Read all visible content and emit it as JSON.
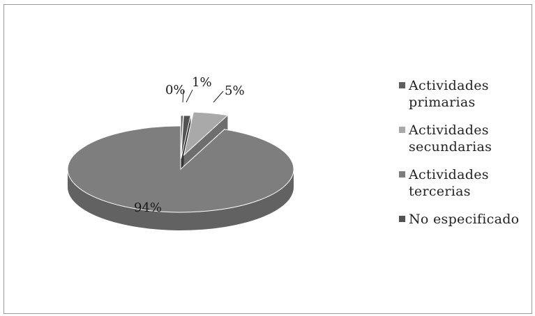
{
  "chart_data": {
    "type": "pie",
    "title": "",
    "slices": [
      {
        "label": "Actividades primarias",
        "value": 0,
        "display": "0%",
        "color": "#5e5e5e"
      },
      {
        "label": "Actividades secundarias",
        "value": 5,
        "display": "5%",
        "color": "#a9a9a9"
      },
      {
        "label": "Actividades tercerias",
        "value": 94,
        "display": "94%",
        "color": "#7e7e7e"
      },
      {
        "label": "No especificado",
        "value": 1,
        "display": "1%",
        "color": "#525252"
      }
    ],
    "legend_position": "right",
    "style": "3d-exploded"
  },
  "legend": {
    "items": [
      {
        "label": "Actividades primarias",
        "line1": "Actividades",
        "line2": "primarias",
        "color": "#5e5e5e"
      },
      {
        "label": "Actividades secundarias",
        "line1": "Actividades",
        "line2": "secundarias",
        "color": "#a9a9a9"
      },
      {
        "label": "Actividades tercerias",
        "line1": "Actividades",
        "line2": "tercerias",
        "color": "#7e7e7e"
      },
      {
        "label": "No especificado",
        "line1": "No especificado",
        "line2": "",
        "color": "#525252"
      }
    ]
  }
}
